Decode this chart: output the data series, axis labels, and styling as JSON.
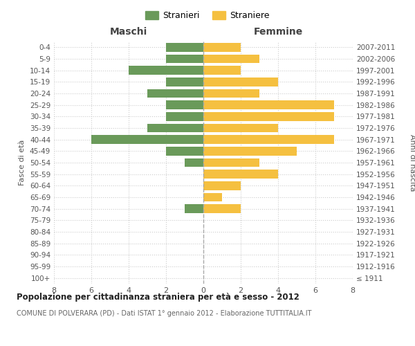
{
  "age_groups": [
    "100+",
    "95-99",
    "90-94",
    "85-89",
    "80-84",
    "75-79",
    "70-74",
    "65-69",
    "60-64",
    "55-59",
    "50-54",
    "45-49",
    "40-44",
    "35-39",
    "30-34",
    "25-29",
    "20-24",
    "15-19",
    "10-14",
    "5-9",
    "0-4"
  ],
  "birth_years": [
    "≤ 1911",
    "1912-1916",
    "1917-1921",
    "1922-1926",
    "1927-1931",
    "1932-1936",
    "1937-1941",
    "1942-1946",
    "1947-1951",
    "1952-1956",
    "1957-1961",
    "1962-1966",
    "1967-1971",
    "1972-1976",
    "1977-1981",
    "1982-1986",
    "1987-1991",
    "1992-1996",
    "1997-2001",
    "2002-2006",
    "2007-2011"
  ],
  "maschi": [
    0,
    0,
    0,
    0,
    0,
    0,
    1,
    0,
    0,
    0,
    1,
    2,
    6,
    3,
    2,
    2,
    3,
    2,
    4,
    2,
    2
  ],
  "femmine": [
    0,
    0,
    0,
    0,
    0,
    0,
    2,
    1,
    2,
    4,
    3,
    5,
    7,
    4,
    7,
    7,
    3,
    4,
    2,
    3,
    2
  ],
  "maschi_color": "#6a9a5a",
  "femmine_color": "#f5c040",
  "background_color": "#ffffff",
  "grid_color": "#cccccc",
  "title": "Popolazione per cittadinanza straniera per età e sesso - 2012",
  "subtitle": "COMUNE DI POLVERARA (PD) - Dati ISTAT 1° gennaio 2012 - Elaborazione TUTTITALIA.IT",
  "xlabel_left": "Maschi",
  "xlabel_right": "Femmine",
  "ylabel_left": "Fasce di età",
  "ylabel_right": "Anni di nascita",
  "legend_stranieri": "Stranieri",
  "legend_straniere": "Straniere",
  "xlim": 8
}
